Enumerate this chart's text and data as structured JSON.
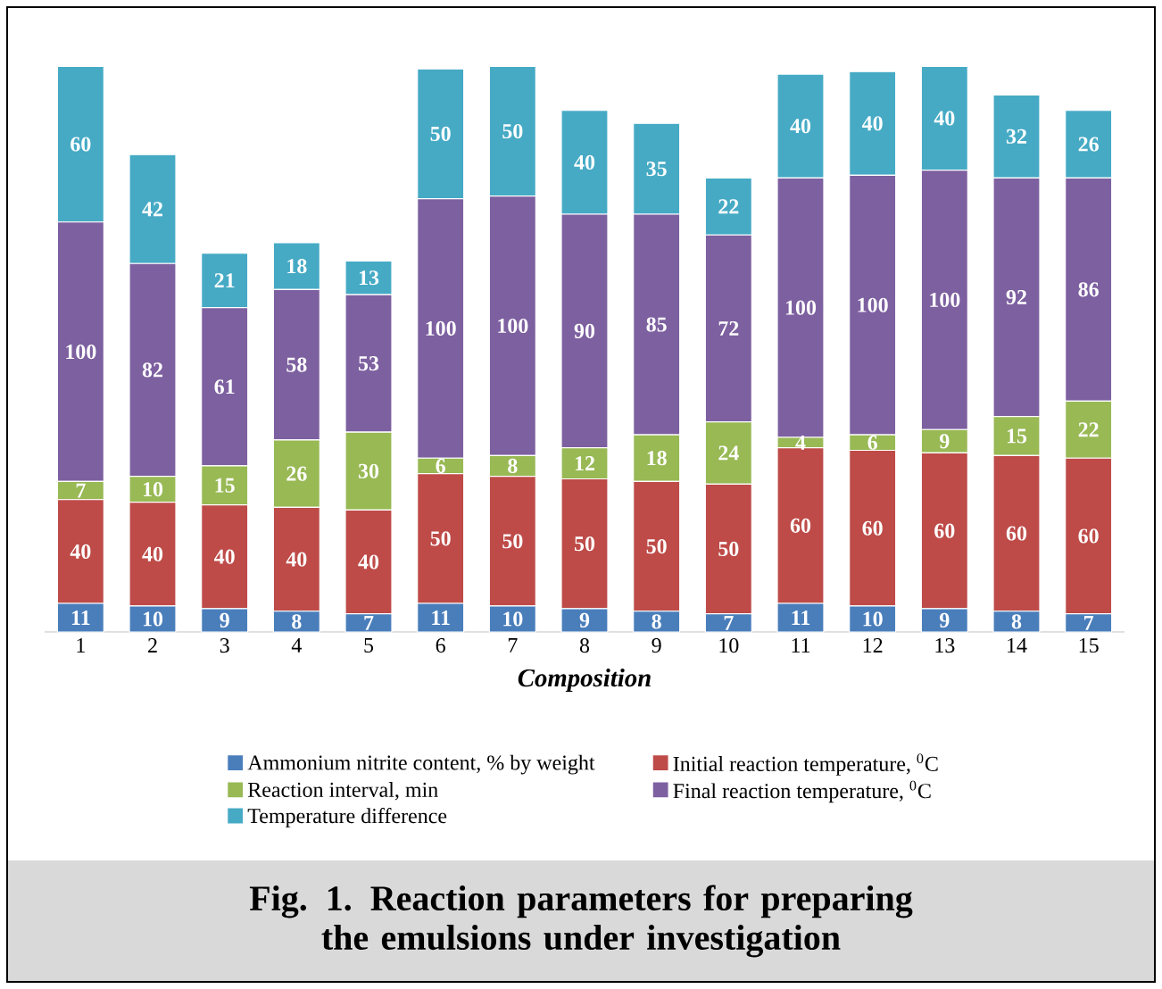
{
  "chart_data": {
    "type": "bar",
    "stacked": true,
    "data_labels": true,
    "title": "Fig. 1. Reaction parameters for preparing the emulsions under investigation",
    "xlabel": "Composition",
    "legend": "bottom",
    "categories": [
      "1",
      "2",
      "3",
      "4",
      "5",
      "6",
      "7",
      "8",
      "9",
      "10",
      "11",
      "12",
      "13",
      "14",
      "15"
    ],
    "series": [
      {
        "name": "Ammonium nitrite content, % by weight",
        "color": "#4a7ebb",
        "values": [
          11,
          10,
          9,
          8,
          7,
          11,
          10,
          9,
          8,
          7,
          11,
          10,
          9,
          8,
          7
        ]
      },
      {
        "name": "Initial reaction temperature, $^{0}$C",
        "color": "#be4b48",
        "values": [
          40,
          40,
          40,
          40,
          40,
          50,
          50,
          50,
          50,
          50,
          60,
          60,
          60,
          60,
          60
        ]
      },
      {
        "name": "Reaction interval, min",
        "color": "#98b954",
        "values": [
          7,
          10,
          15,
          26,
          30,
          6,
          8,
          12,
          18,
          24,
          4,
          6,
          9,
          15,
          22
        ]
      },
      {
        "name": "Final reaction temperature, $^{0}$C",
        "color": "#7d60a0",
        "values": [
          100,
          82,
          61,
          58,
          53,
          100,
          100,
          90,
          85,
          72,
          100,
          100,
          100,
          92,
          86
        ]
      },
      {
        "name": "Temperature difference",
        "color": "#46aac5",
        "values": [
          60,
          42,
          21,
          18,
          13,
          50,
          50,
          40,
          35,
          22,
          40,
          40,
          40,
          32,
          26
        ]
      }
    ]
  }
}
